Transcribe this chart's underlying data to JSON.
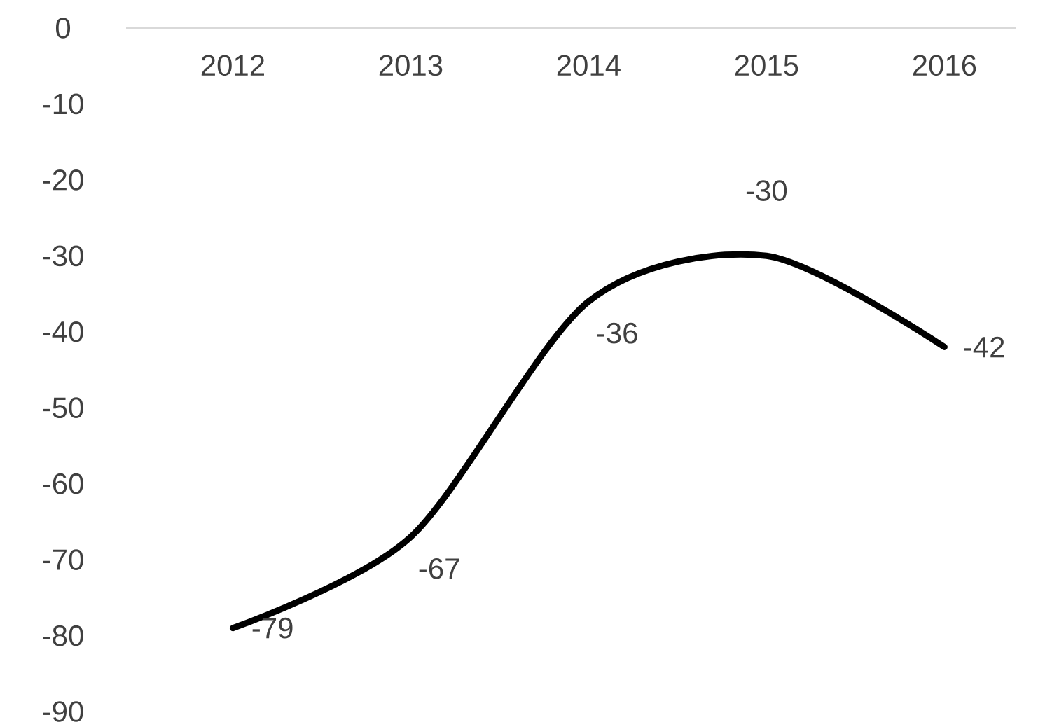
{
  "chart_data": {
    "type": "line",
    "categories": [
      "2012",
      "2013",
      "2014",
      "2015",
      "2016"
    ],
    "values": [
      -79,
      -67,
      -36,
      -30,
      -42
    ],
    "color": "#000000",
    "ylim": [
      -90,
      0
    ],
    "yticks": [
      0,
      -10,
      -20,
      -30,
      -40,
      -50,
      -60,
      -70,
      -80,
      -90
    ],
    "data_labels": true
  }
}
